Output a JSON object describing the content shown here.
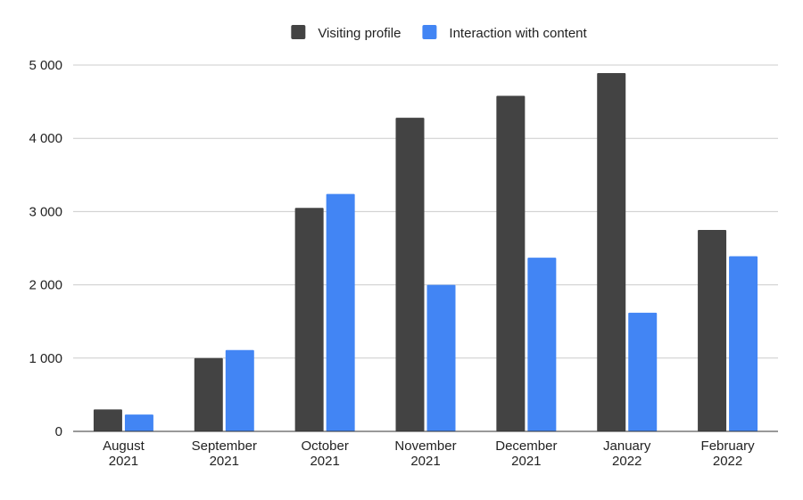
{
  "chart_data": {
    "type": "bar",
    "title": "",
    "xlabel": "",
    "ylabel": "",
    "categories": [
      [
        "August",
        "2021"
      ],
      [
        "September",
        "2021"
      ],
      [
        "October",
        "2021"
      ],
      [
        "November",
        "2021"
      ],
      [
        "December",
        "2021"
      ],
      [
        "January",
        "2022"
      ],
      [
        "February",
        "2022"
      ]
    ],
    "series": [
      {
        "name": "Visiting profile",
        "color": "#434343",
        "values": [
          300,
          1000,
          3050,
          4280,
          4580,
          4890,
          2750
        ]
      },
      {
        "name": "Interaction with content",
        "color": "#4285f4",
        "values": [
          230,
          1110,
          3240,
          2000,
          2370,
          1620,
          2390
        ]
      }
    ],
    "ylim": [
      0,
      5000
    ],
    "yticks": [
      0,
      1000,
      2000,
      3000,
      4000,
      5000
    ],
    "ytick_labels": [
      "0",
      "1 000",
      "2 000",
      "3 000",
      "4 000",
      "5 000"
    ],
    "grid": true,
    "legend_position": "top"
  }
}
